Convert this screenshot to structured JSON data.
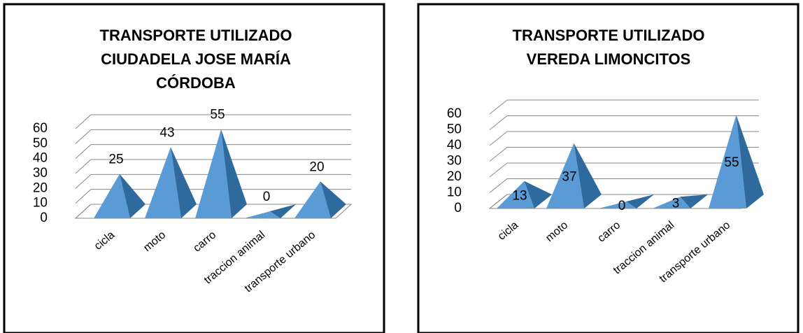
{
  "chart_data": [
    {
      "type": "pyramid3d",
      "title": "TRANSPORTE UTILIZADO CIUDADELA JOSE MARÍA CÓRDOBA",
      "categories": [
        "cicla",
        "moto",
        "carro",
        "traccion animal",
        "transporte urbano"
      ],
      "values": [
        25,
        43,
        55,
        0,
        20
      ],
      "color": "#5b9bd5",
      "ylim": [
        0,
        60
      ],
      "yticks": [
        0,
        10,
        20,
        30,
        40,
        50,
        60
      ],
      "grid": true
    },
    {
      "type": "pyramid3d",
      "title": "TRANSPORTE UTILIZADO VEREDA LIMONCITOS",
      "categories": [
        "cicla",
        "moto",
        "carro",
        "traccion animal",
        "transporte urbano"
      ],
      "values": [
        13,
        37,
        0,
        3,
        55
      ],
      "color": "#5b9bd5",
      "ylim": [
        0,
        60
      ],
      "yticks": [
        0,
        10,
        20,
        30,
        40,
        50,
        60
      ],
      "grid": true
    }
  ]
}
